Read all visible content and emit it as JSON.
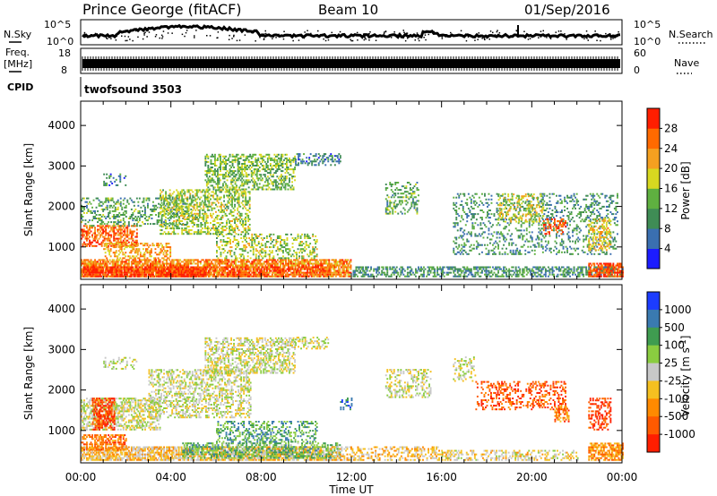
{
  "header": {
    "station": "Prince George (fitACF)",
    "beam": "Beam 10",
    "date": "01/Sep/2016"
  },
  "panels": {
    "nsky": {
      "label": "N.Sky",
      "right_label": "N.Search",
      "ticks_left": [
        "10^5",
        "10^0"
      ],
      "ticks_right": [
        "10^5",
        "10^0"
      ]
    },
    "freq": {
      "label_line1": "Freq.",
      "label_line2": "[MHz]",
      "ticks_left": [
        "18",
        "8"
      ],
      "ticks_right": [
        "60",
        "0"
      ],
      "right_label": "Nave"
    },
    "cpid": {
      "label": "CPID",
      "value": "twofsound 3503"
    }
  },
  "chart_data": [
    {
      "type": "heatmap",
      "quantity": "Power",
      "colorbar_label": "Power [dB]",
      "ylabel": "Slant Range [km]",
      "xlabel": "Time UT",
      "xlim_hours": [
        0,
        24
      ],
      "ylim_km": [
        200,
        4600
      ],
      "y_ticks": [
        1000,
        2000,
        3000,
        4000
      ],
      "x_ticks": [
        "00:00",
        "04:00",
        "08:00",
        "12:00",
        "16:00",
        "20:00",
        "00:00"
      ],
      "colorbar_ticks": [
        "4",
        "8",
        "12",
        "16",
        "20",
        "24",
        "28"
      ],
      "colorbar_colors": [
        "#1c1cff",
        "#3a6fb0",
        "#3f8c55",
        "#5fb040",
        "#d8d820",
        "#f5a020",
        "#ff6a00",
        "#ff1e00"
      ],
      "bands": [
        {
          "t0": 0.0,
          "t1": 12.0,
          "r0": 250,
          "r1": 700,
          "level": 5.5,
          "density": 0.75
        },
        {
          "t0": 0.1,
          "t1": 5.5,
          "r0": 250,
          "r1": 500,
          "level": 7.0,
          "density": 0.7
        },
        {
          "t0": 3.0,
          "t1": 11.0,
          "r0": 250,
          "r1": 500,
          "level": 6.5,
          "density": 0.55
        },
        {
          "t0": 12.0,
          "t1": 24.0,
          "r0": 250,
          "r1": 500,
          "level": 2.0,
          "density": 0.55
        },
        {
          "t0": 22.5,
          "t1": 24.0,
          "r0": 250,
          "r1": 600,
          "level": 6.5,
          "density": 0.7
        },
        {
          "t0": 0.0,
          "t1": 2.5,
          "r0": 1000,
          "r1": 1500,
          "level": 6.0,
          "density": 0.55
        },
        {
          "t0": 1.0,
          "t1": 4.0,
          "r0": 700,
          "r1": 1100,
          "level": 5.0,
          "density": 0.45
        },
        {
          "t0": 0.0,
          "t1": 5.0,
          "r0": 1500,
          "r1": 2200,
          "level": 2.5,
          "density": 0.35
        },
        {
          "t0": 3.5,
          "t1": 7.5,
          "r0": 1300,
          "r1": 2400,
          "level": 3.5,
          "density": 0.45
        },
        {
          "t0": 5.5,
          "t1": 9.5,
          "r0": 2400,
          "r1": 3300,
          "level": 3.0,
          "density": 0.5
        },
        {
          "t0": 6.0,
          "t1": 10.5,
          "r0": 700,
          "r1": 1300,
          "level": 3.5,
          "density": 0.35
        },
        {
          "t0": 9.5,
          "t1": 11.5,
          "r0": 3000,
          "r1": 3300,
          "level": 1.5,
          "density": 0.4
        },
        {
          "t0": 13.5,
          "t1": 15.0,
          "r0": 1800,
          "r1": 2600,
          "level": 2.5,
          "density": 0.35
        },
        {
          "t0": 16.5,
          "t1": 23.8,
          "r0": 800,
          "r1": 2300,
          "level": 2.0,
          "density": 0.25
        },
        {
          "t0": 18.5,
          "t1": 20.5,
          "r0": 1600,
          "r1": 2300,
          "level": 4.0,
          "density": 0.3
        },
        {
          "t0": 20.5,
          "t1": 21.5,
          "r0": 1300,
          "r1": 1700,
          "level": 6.5,
          "density": 0.45
        },
        {
          "t0": 22.5,
          "t1": 23.5,
          "r0": 900,
          "r1": 1700,
          "level": 4.5,
          "density": 0.4
        },
        {
          "t0": 1.0,
          "t1": 2.0,
          "r0": 2500,
          "r1": 2800,
          "level": 1.5,
          "density": 0.3
        }
      ]
    },
    {
      "type": "heatmap",
      "quantity": "Velocity",
      "colorbar_label": "Velocity [m s^-1]",
      "ylabel": "Slant Range [km]",
      "xlabel": "Time UT",
      "xlim_hours": [
        0,
        24
      ],
      "ylim_km": [
        200,
        4600
      ],
      "y_ticks": [
        1000,
        2000,
        3000,
        4000
      ],
      "x_ticks": [
        "00:00",
        "04:00",
        "08:00",
        "12:00",
        "16:00",
        "20:00",
        "00:00"
      ],
      "colorbar_ticks": [
        "1000",
        "500",
        "100",
        "25",
        "-25",
        "-100",
        "-500",
        "-1000"
      ],
      "colorbar_colors": [
        "#1c3cff",
        "#3a7ab0",
        "#3f9c50",
        "#8acc40",
        "#c8c8c8",
        "#f5c020",
        "#ff8a00",
        "#ff5a00",
        "#ff1e00"
      ],
      "bands": [
        {
          "t0": 0.0,
          "t1": 11.0,
          "r0": 250,
          "r1": 600,
          "level": 5.0,
          "density": 0.75
        },
        {
          "t0": 0.0,
          "t1": 2.0,
          "r0": 500,
          "r1": 900,
          "level": 6.5,
          "density": 0.6
        },
        {
          "t0": 4.5,
          "t1": 11.5,
          "r0": 300,
          "r1": 700,
          "level": 2.5,
          "density": 0.55
        },
        {
          "t0": 6.0,
          "t1": 10.5,
          "r0": 700,
          "r1": 1200,
          "level": 2.0,
          "density": 0.4
        },
        {
          "t0": 11.0,
          "t1": 16.0,
          "r0": 250,
          "r1": 600,
          "level": 5.0,
          "density": 0.45
        },
        {
          "t0": 16.0,
          "t1": 22.0,
          "r0": 250,
          "r1": 500,
          "level": 4.5,
          "density": 0.4
        },
        {
          "t0": 22.5,
          "t1": 24.0,
          "r0": 250,
          "r1": 700,
          "level": 6.0,
          "density": 0.7
        },
        {
          "t0": 0.0,
          "t1": 3.5,
          "r0": 1000,
          "r1": 1800,
          "level": 4.0,
          "density": 0.55
        },
        {
          "t0": 0.5,
          "t1": 1.5,
          "r0": 1000,
          "r1": 1800,
          "level": 7.5,
          "density": 0.6
        },
        {
          "t0": 3.0,
          "t1": 7.5,
          "r0": 1300,
          "r1": 2500,
          "level": 4.0,
          "density": 0.45
        },
        {
          "t0": 5.5,
          "t1": 9.5,
          "r0": 2400,
          "r1": 3300,
          "level": 4.0,
          "density": 0.5
        },
        {
          "t0": 9.5,
          "t1": 11.0,
          "r0": 3000,
          "r1": 3300,
          "level": 4.0,
          "density": 0.35
        },
        {
          "t0": 13.5,
          "t1": 15.5,
          "r0": 1800,
          "r1": 2500,
          "level": 4.0,
          "density": 0.4
        },
        {
          "t0": 16.5,
          "t1": 17.5,
          "r0": 2200,
          "r1": 2800,
          "level": 4.0,
          "density": 0.3
        },
        {
          "t0": 17.5,
          "t1": 21.5,
          "r0": 1500,
          "r1": 2200,
          "level": 7.0,
          "density": 0.35
        },
        {
          "t0": 21.0,
          "t1": 21.6,
          "r0": 1200,
          "r1": 1600,
          "level": 6.5,
          "density": 0.5
        },
        {
          "t0": 22.5,
          "t1": 23.5,
          "r0": 1000,
          "r1": 1800,
          "level": 7.5,
          "density": 0.4
        },
        {
          "t0": 1.0,
          "t1": 2.5,
          "r0": 2500,
          "r1": 2800,
          "level": 4.0,
          "density": 0.3
        },
        {
          "t0": 11.5,
          "t1": 12.0,
          "r0": 1500,
          "r1": 1800,
          "level": 1.0,
          "density": 0.5
        }
      ]
    }
  ]
}
